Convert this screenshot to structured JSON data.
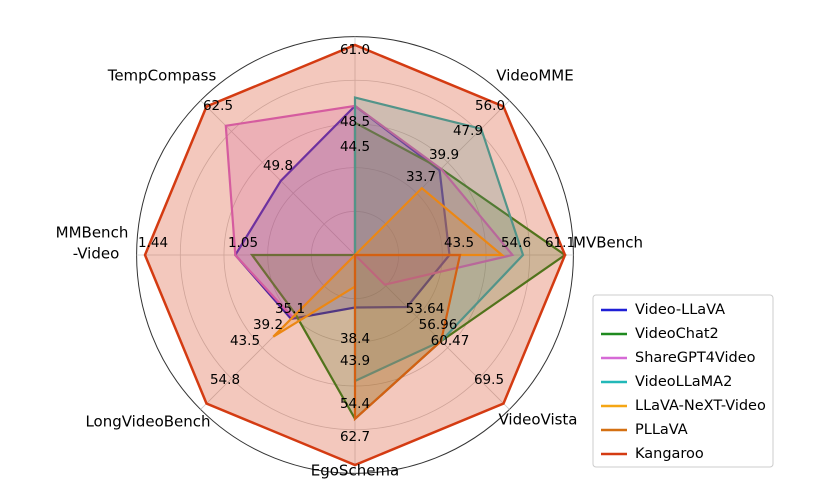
{
  "chart_data": {
    "type": "radar",
    "axes": [
      {
        "name": "VideoMME",
        "mark": "VideoMME",
        "ticks": [
          "56.0",
          "47.9",
          "39.9",
          "33.7"
        ]
      },
      {
        "name": "MVBench",
        "mark": "MVBench",
        "ticks": [
          "61.1",
          "54.6",
          "43.5"
        ]
      },
      {
        "name": "VideoVista",
        "mark": "VideoVista",
        "ticks": [
          "69.5",
          "60.47",
          "56.96",
          "53.64"
        ]
      },
      {
        "name": "EgoSchema",
        "mark": "EgoSchema",
        "ticks": [
          "62.7",
          "54.4",
          "43.9",
          "38.4"
        ]
      },
      {
        "name": "LongVideoBench",
        "mark": "LongVideoBench",
        "ticks": [
          "54.8",
          "43.5",
          "39.2",
          "35.1"
        ]
      },
      {
        "name": "MMBench-Video",
        "mark": "MMBench-Video",
        "ticks": [
          "1.44",
          "1.05"
        ]
      },
      {
        "name": "TempCompass",
        "mark": "TempCompass",
        "ticks": [
          "62.5",
          "49.8"
        ]
      },
      {
        "name": "",
        "mark": "",
        "ticks": [
          "61.0",
          "48.5",
          "44.5"
        ]
      }
    ],
    "series": [
      {
        "name": "Video-LLaVA",
        "color": "#1f1fd6",
        "values": [
          0.57,
          0.45,
          0.35,
          0.25,
          0.43,
          0.57,
          0.5,
          0.71
        ]
      },
      {
        "name": "VideoChat2",
        "color": "#1f8a1f",
        "values": [
          0.58,
          1.0,
          0.58,
          0.78,
          0.4,
          0.49,
          0.0,
          0.63
        ]
      },
      {
        "name": "ShareGPT4Video",
        "color": "#d66ad6",
        "values": [
          0.58,
          0.75,
          0.2,
          0.0,
          0.42,
          0.57,
          0.87,
          0.71
        ]
      },
      {
        "name": "VideoLLaMA2",
        "color": "#22b8b8",
        "values": [
          0.85,
          0.8,
          0.58,
          0.6,
          0.0,
          0.0,
          0.0,
          0.75
        ]
      },
      {
        "name": "LLaVA-NeXT-Video",
        "color": "#f5a614",
        "values": [
          0.45,
          0.7,
          0.0,
          0.15,
          0.55,
          0.0,
          0.0,
          0.0
        ]
      },
      {
        "name": "PLLaVA",
        "color": "#d47012",
        "values": [
          0.0,
          0.5,
          0.58,
          0.78,
          0.0,
          0.0,
          0.0,
          0.0
        ]
      },
      {
        "name": "Kangaroo",
        "color": "#d43b12",
        "values": [
          1.0,
          1.0,
          1.0,
          1.0,
          1.0,
          1.0,
          1.0,
          1.0
        ]
      }
    ],
    "rlim": [
      0,
      1
    ],
    "grid": true,
    "legend_position": "lower-right"
  }
}
